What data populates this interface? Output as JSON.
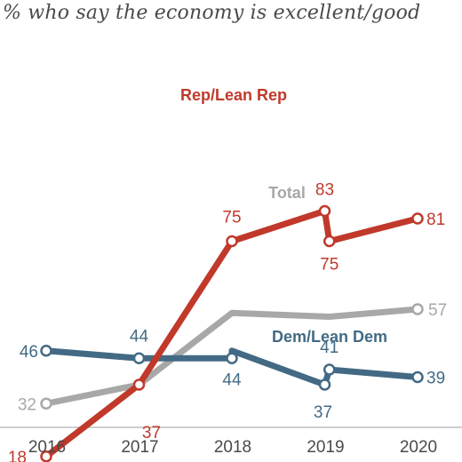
{
  "chart_data": {
    "type": "line",
    "title": "% who say the economy is excellent/good",
    "xlabel": "",
    "ylabel": "",
    "ylim": [
      10,
      90
    ],
    "grid": false,
    "x_ticks": [
      "2016",
      "2017",
      "2018",
      "2019",
      "2020"
    ],
    "series": [
      {
        "name": "Rep/Lean Rep",
        "color": "#c0392b",
        "points": [
          {
            "x": 2016.0,
            "y": 18,
            "marker": true,
            "label": "18"
          },
          {
            "x": 2017.0,
            "y": 37,
            "marker": true,
            "label": "37"
          },
          {
            "x": 2018.0,
            "y": 75,
            "marker": true,
            "label": "75"
          },
          {
            "x": 2019.0,
            "y": 83,
            "marker": true,
            "label": "83"
          },
          {
            "x": 2019.05,
            "y": 75,
            "marker": true,
            "label": "75"
          },
          {
            "x": 2020.0,
            "y": 81,
            "marker": true,
            "label": "81"
          }
        ]
      },
      {
        "name": "Total",
        "color": "#a8a8a8",
        "points": [
          {
            "x": 2016.0,
            "y": 32,
            "marker": true,
            "label": "32"
          },
          {
            "x": 2017.0,
            "y": 37,
            "marker": false,
            "label": ""
          },
          {
            "x": 2018.0,
            "y": 56,
            "marker": false,
            "label": ""
          },
          {
            "x": 2019.05,
            "y": 55,
            "marker": false,
            "label": ""
          },
          {
            "x": 2020.0,
            "y": 57,
            "marker": true,
            "label": "57"
          }
        ]
      },
      {
        "name": "Dem/Lean Dem",
        "color": "#436a84",
        "points": [
          {
            "x": 2016.0,
            "y": 46,
            "marker": true,
            "label": "46"
          },
          {
            "x": 2017.0,
            "y": 44,
            "marker": true,
            "label": "44"
          },
          {
            "x": 2018.0,
            "y": 44,
            "marker": true,
            "label": "44"
          },
          {
            "x": 2018.0,
            "y": 46,
            "marker": false,
            "label": ""
          },
          {
            "x": 2019.0,
            "y": 37,
            "marker": true,
            "label": "37"
          },
          {
            "x": 2019.05,
            "y": 41,
            "marker": true,
            "label": "41"
          },
          {
            "x": 2020.0,
            "y": 39,
            "marker": true,
            "label": "39"
          }
        ]
      }
    ]
  }
}
